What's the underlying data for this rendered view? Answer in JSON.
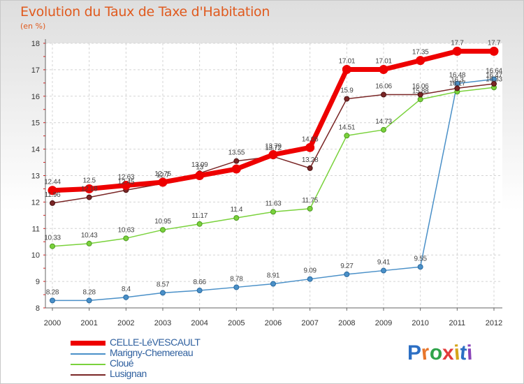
{
  "chart_data": {
    "type": "line",
    "title": "Evolution du Taux de Taxe d'Habitation",
    "subtitle": "(en %)",
    "xlabel": "",
    "ylabel": "",
    "x": [
      "2000",
      "2001",
      "2002",
      "2003",
      "2004",
      "2005",
      "2006",
      "2007",
      "2008",
      "2009",
      "2010",
      "2011",
      "2012"
    ],
    "ylim": [
      8,
      18
    ],
    "yticks": [
      "8",
      "9",
      "10",
      "11",
      "12",
      "13",
      "14",
      "15",
      "16",
      "17",
      "18"
    ],
    "grid": true,
    "legend_position": "bottom-left",
    "series": [
      {
        "name": "CELLE-LéVESCAULT",
        "color": "#ee0000",
        "values": [
          12.44,
          12.5,
          12.63,
          12.75,
          13.0,
          13.25,
          13.79,
          14.06,
          17.01,
          17.01,
          17.35,
          17.7,
          17.7
        ],
        "labels": [
          "12.44",
          "12.5",
          "12.63",
          "12.75",
          "13",
          "",
          "13.79",
          "14.06",
          "17.01",
          "17.01",
          "17.35",
          "17.7",
          "17.7"
        ]
      },
      {
        "name": "Marigny-Chemereau",
        "color": "#4a90c8",
        "values": [
          8.28,
          8.28,
          8.4,
          8.57,
          8.66,
          8.78,
          8.91,
          9.09,
          9.27,
          9.41,
          9.55,
          16.48,
          16.64
        ],
        "labels": [
          "8.28",
          "8.28",
          "8.4",
          "8.57",
          "8.66",
          "8.78",
          "8.91",
          "9.09",
          "9.27",
          "9.41",
          "9.55",
          "16.48",
          "16.64"
        ]
      },
      {
        "name": "Cloué",
        "color": "#7ad23c",
        "values": [
          10.33,
          10.43,
          10.63,
          10.95,
          11.17,
          11.4,
          11.63,
          11.75,
          14.51,
          14.73,
          15.88,
          16.17,
          16.33
        ],
        "labels": [
          "10.33",
          "10.43",
          "10.63",
          "10.95",
          "11.17",
          "11.4",
          "11.63",
          "11.75",
          "14.51",
          "14.73",
          "15.88",
          "16.17",
          "16.33"
        ]
      },
      {
        "name": "Lusignan",
        "color": "#7a2626",
        "values": [
          11.96,
          12.18,
          12.45,
          12.7,
          13.09,
          13.55,
          13.72,
          13.28,
          15.9,
          16.06,
          16.06,
          16.3,
          16.47
        ],
        "labels": [
          "11.96",
          "12.18",
          "12.45",
          "12.7",
          "13.09",
          "13.55",
          "13.72",
          "13.28",
          "15.9",
          "16.06",
          "16.06",
          "16.3",
          "16.47"
        ]
      }
    ]
  },
  "logo": {
    "text": "Proxiti"
  }
}
